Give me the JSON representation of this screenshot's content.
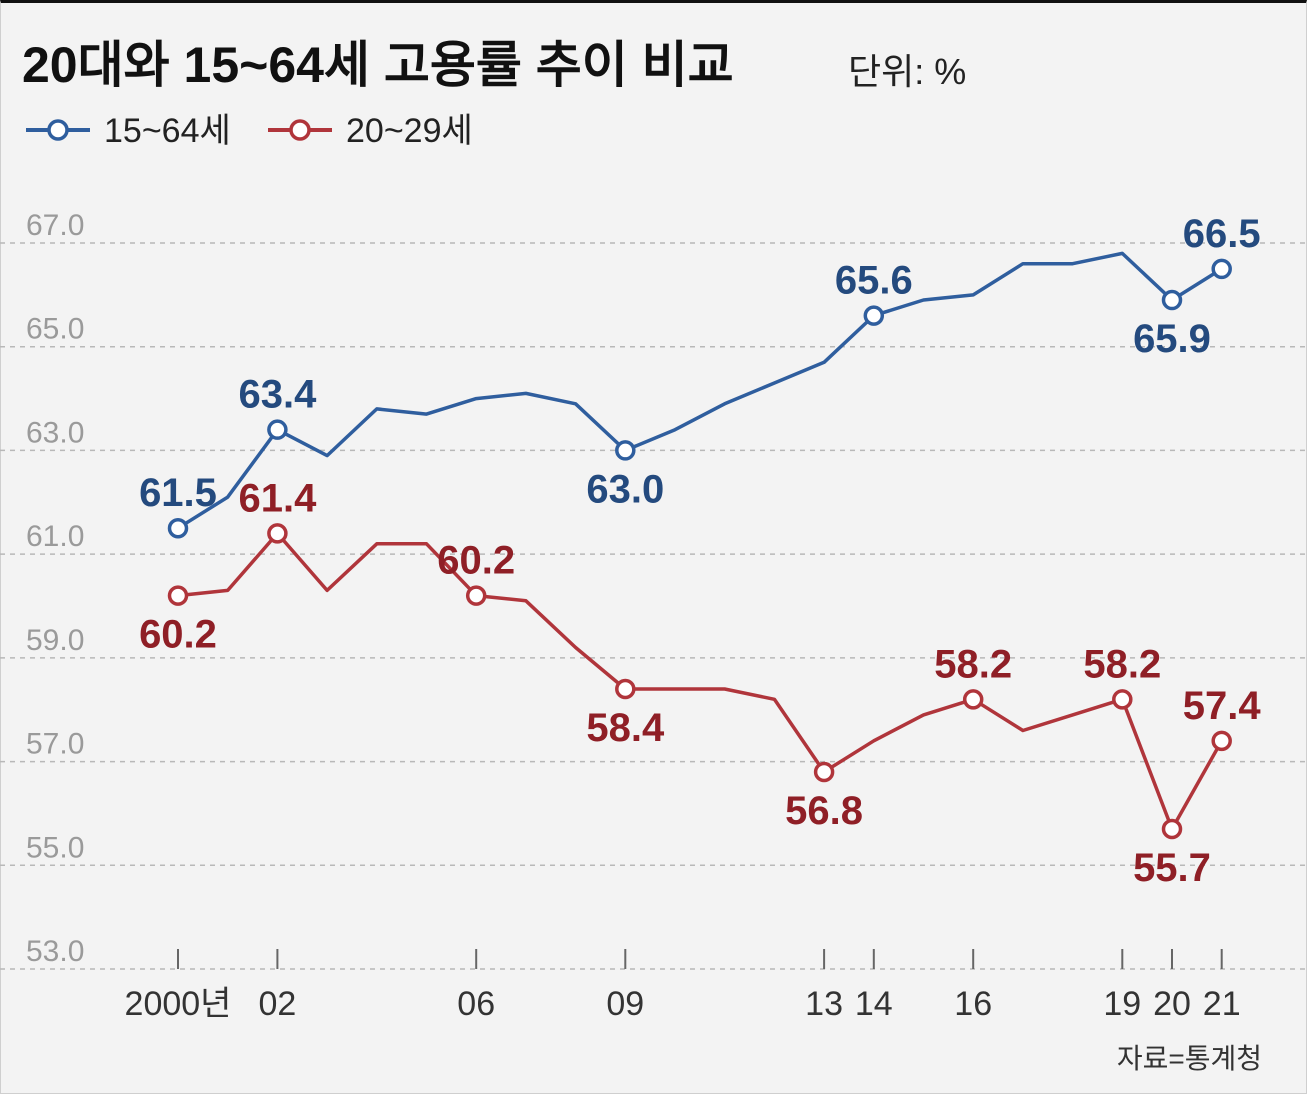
{
  "title": "20대와 15~64세 고용률 추이 비교",
  "unit": "단위: %",
  "source": "자료=통계청",
  "colors": {
    "blue": "#2f5e9e",
    "red": "#b0353b",
    "blueLabel": "#244a7e",
    "redLabel": "#8f1f26",
    "grid": "#b8b8b8"
  },
  "chart_data": {
    "type": "line",
    "title": "20대와 15~64세 고용률 추이 비교",
    "ylabel": "단위: %",
    "ylim": [
      53,
      67
    ],
    "yticks": [
      "53.0",
      "55.0",
      "57.0",
      "59.0",
      "61.0",
      "63.0",
      "65.0",
      "67.0"
    ],
    "x": [
      2000,
      2001,
      2002,
      2003,
      2004,
      2005,
      2006,
      2007,
      2008,
      2009,
      2010,
      2011,
      2012,
      2013,
      2014,
      2015,
      2016,
      2017,
      2018,
      2019,
      2020,
      2021
    ],
    "xticks": [
      {
        "x": 2000,
        "label": "2000년"
      },
      {
        "x": 2002,
        "label": "02"
      },
      {
        "x": 2006,
        "label": "06"
      },
      {
        "x": 2009,
        "label": "09"
      },
      {
        "x": 2013,
        "label": "13"
      },
      {
        "x": 2014,
        "label": "14"
      },
      {
        "x": 2016,
        "label": "16"
      },
      {
        "x": 2019,
        "label": "19"
      },
      {
        "x": 2020,
        "label": "20"
      },
      {
        "x": 2021,
        "label": "21"
      }
    ],
    "series": [
      {
        "name": "15~64세",
        "color": "#2f5e9e",
        "values": [
          61.5,
          62.1,
          63.4,
          62.9,
          63.8,
          63.7,
          64.0,
          64.1,
          63.9,
          63.0,
          63.4,
          63.9,
          64.3,
          64.7,
          65.6,
          65.9,
          66.0,
          66.6,
          66.6,
          66.8,
          65.9,
          66.5
        ],
        "labels": [
          {
            "x": 2000,
            "text": "61.5",
            "pos": "above"
          },
          {
            "x": 2002,
            "text": "63.4",
            "pos": "above"
          },
          {
            "x": 2009,
            "text": "63.0",
            "pos": "below"
          },
          {
            "x": 2014,
            "text": "65.6",
            "pos": "above"
          },
          {
            "x": 2020,
            "text": "65.9",
            "pos": "below"
          },
          {
            "x": 2021,
            "text": "66.5",
            "pos": "above"
          }
        ]
      },
      {
        "name": "20~29세",
        "color": "#b0353b",
        "values": [
          60.2,
          60.3,
          61.4,
          60.3,
          61.2,
          61.2,
          60.2,
          60.1,
          59.2,
          58.4,
          58.4,
          58.4,
          58.2,
          56.8,
          57.4,
          57.9,
          58.2,
          57.6,
          57.9,
          58.2,
          55.7,
          57.4
        ],
        "labels": [
          {
            "x": 2000,
            "text": "60.2",
            "pos": "below"
          },
          {
            "x": 2002,
            "text": "61.4",
            "pos": "above"
          },
          {
            "x": 2006,
            "text": "60.2",
            "pos": "above"
          },
          {
            "x": 2009,
            "text": "58.4",
            "pos": "below"
          },
          {
            "x": 2013,
            "text": "56.8",
            "pos": "below"
          },
          {
            "x": 2016,
            "text": "58.2",
            "pos": "above"
          },
          {
            "x": 2019,
            "text": "58.2",
            "pos": "above"
          },
          {
            "x": 2020,
            "text": "55.7",
            "pos": "below"
          },
          {
            "x": 2021,
            "text": "57.4",
            "pos": "above"
          }
        ]
      }
    ]
  }
}
